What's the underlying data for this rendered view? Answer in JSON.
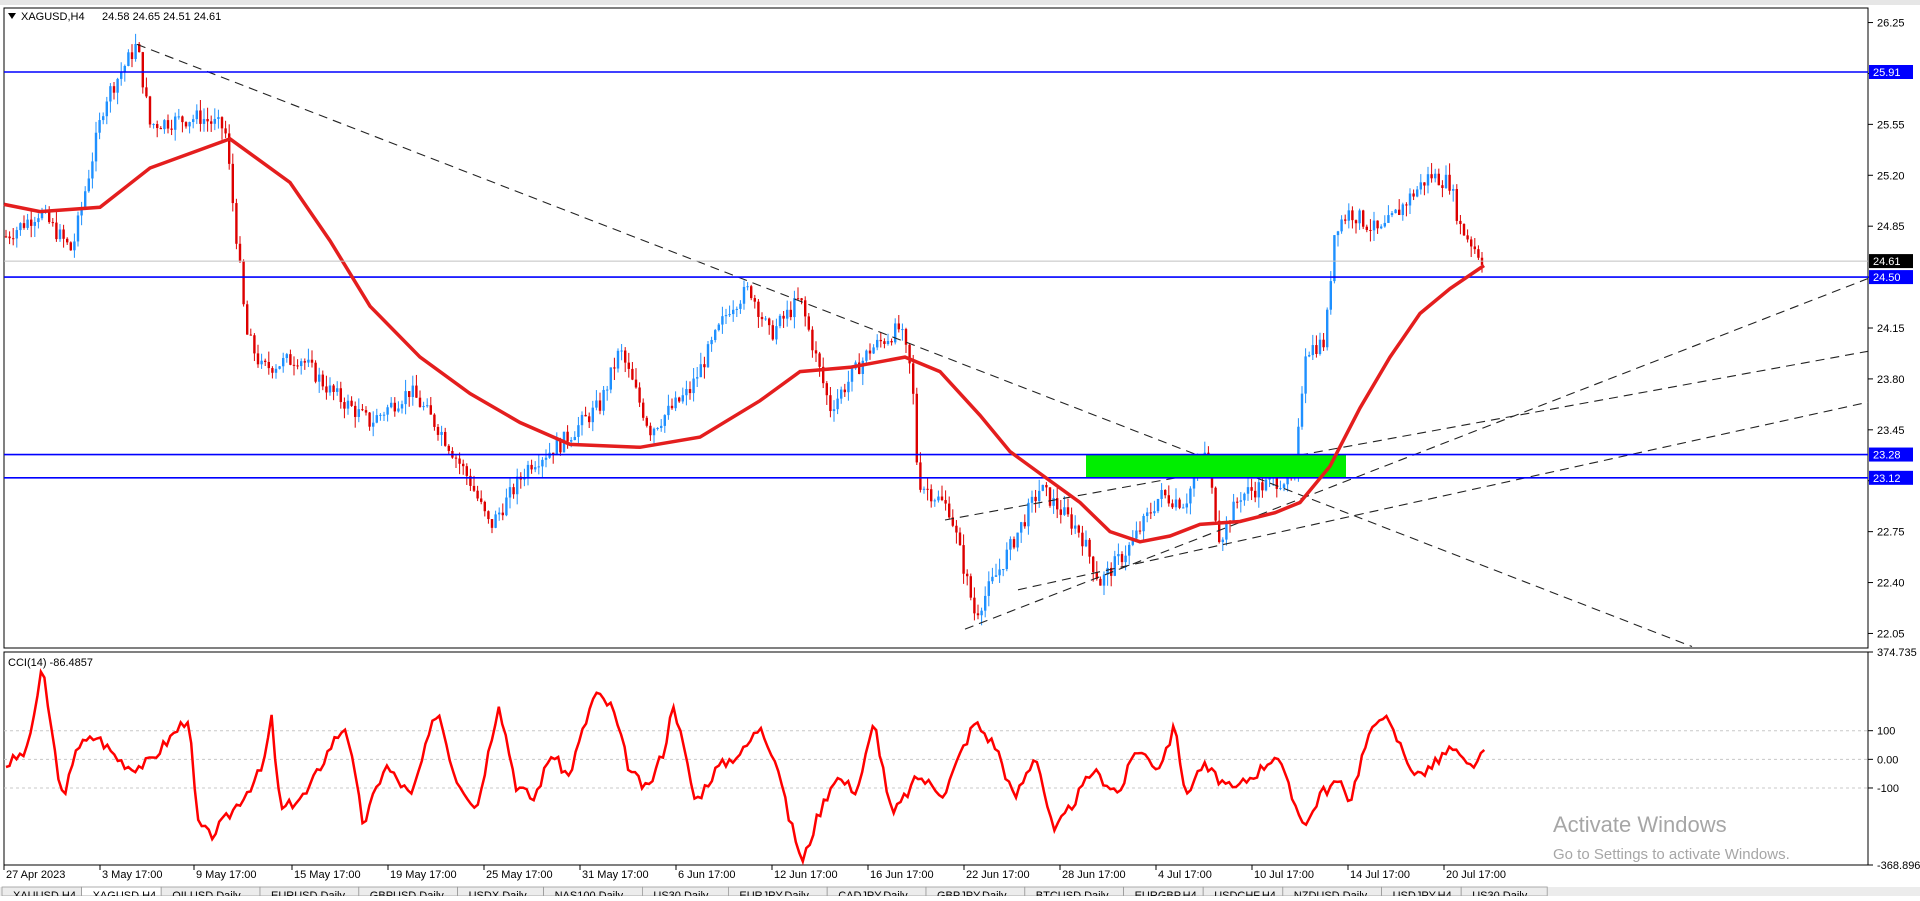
{
  "main_chart": {
    "symbol": "XAGUSD,H4",
    "ohlc": "24.58 24.65 24.51 24.61",
    "price_axis": [
      "26.25",
      "25.90",
      "25.55",
      "25.20",
      "24.85",
      "24.50",
      "24.15",
      "23.80",
      "23.45",
      "23.10",
      "22.75",
      "22.40",
      "22.05"
    ],
    "ylim": [
      21.95,
      26.35
    ],
    "last_price": "24.61",
    "levels": [
      {
        "label": "25.91",
        "value": 25.91
      },
      {
        "label": "24.50",
        "value": 24.5
      },
      {
        "label": "23.28",
        "value": 23.28
      },
      {
        "label": "23.12",
        "value": 23.12
      }
    ]
  },
  "indicator": {
    "label": "CCI(14) -86.4857",
    "axis": [
      "374.735",
      "100",
      "0.00",
      "-100",
      "-368.896"
    ],
    "ylim": [
      -368.896,
      374.735
    ]
  },
  "time_axis": [
    "27 Apr 2023",
    "3 May 17:00",
    "9 May 17:00",
    "15 May 17:00",
    "19 May 17:00",
    "25 May 17:00",
    "31 May 17:00",
    "6 Jun 17:00",
    "12 Jun 17:00",
    "16 Jun 17:00",
    "22 Jun 17:00",
    "28 Jun 17:00",
    "4 Jul 17:00",
    "10 Jul 17:00",
    "14 Jul 17:00",
    "20 Jul 17:00"
  ],
  "watermark": {
    "line1": "Activate Windows",
    "line2": "Go to Settings to activate Windows."
  },
  "tabs": [
    "XAUUSD,H4",
    "XAGUSD,H4",
    "OILUSD,Daily",
    "EURUSD,Daily",
    "GBPUSD,Daily",
    "USDX,Daily",
    "NAS100,Daily",
    "US30,Daily",
    "EURJPY,Daily",
    "CADJPY,Daily",
    "GBPJPY,Daily",
    "BTCUSD,Daily",
    "EURGBP,H4",
    "USDCHF,H4",
    "NZDUSD,Daily",
    "USDJPY,H4",
    "US30,Daily"
  ],
  "active_tab": 1,
  "colors": {
    "bull": "#1e90ff",
    "bear": "#dd0000",
    "ma": "#e41e1e",
    "levels": "#0000ff",
    "zone": "#00ee00",
    "cci": "#ff0000"
  }
}
